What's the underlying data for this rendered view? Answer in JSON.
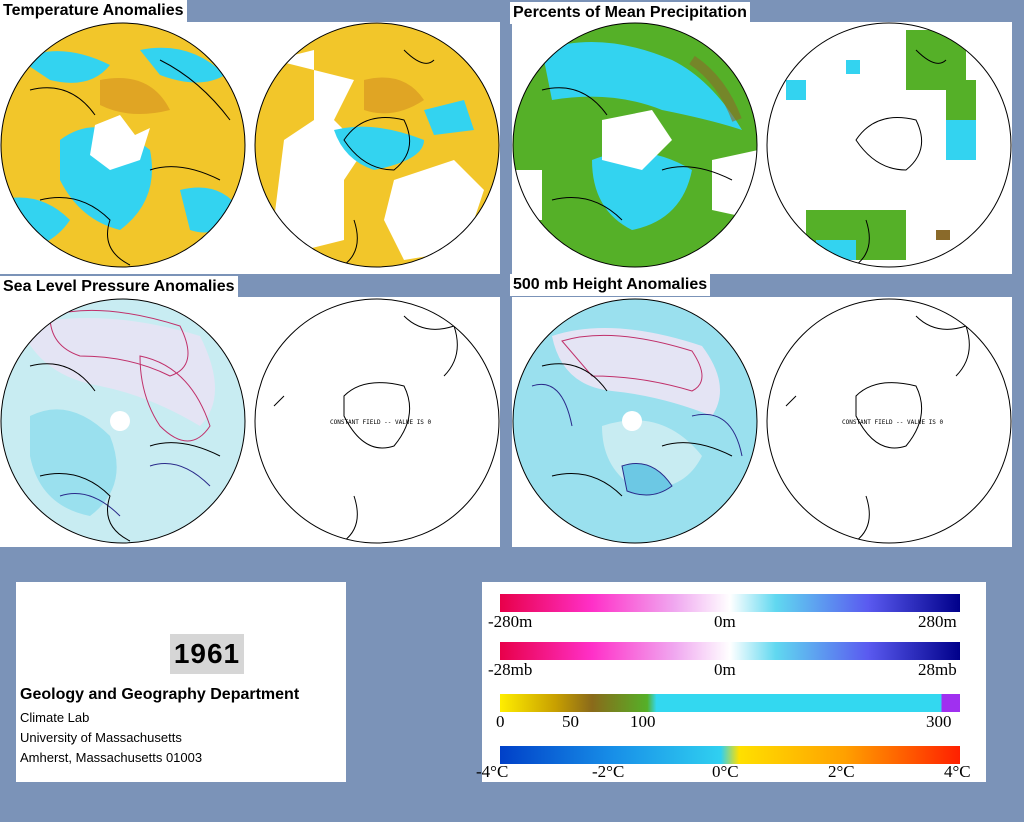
{
  "panels": {
    "temperature": {
      "title": "Temperature Anomalies"
    },
    "precipitation": {
      "title": "Percents of Mean Precipitation"
    },
    "slp": {
      "title": "Sea Level Pressure Anomalies",
      "constant_field": "CONSTANT FIELD -- VALUE IS 0"
    },
    "height": {
      "title": "500 mb Height Anomalies",
      "constant_field": "CONSTANT FIELD -- VALUE IS 0"
    }
  },
  "info": {
    "year": "1961",
    "department": "Geology and Geography Department",
    "lines": [
      "Climate Lab",
      "University of Massachusetts",
      "Amherst, Massachusetts 01003"
    ]
  },
  "legends": {
    "height": {
      "labels": [
        "-280m",
        "0m",
        "280m"
      ]
    },
    "pressure": {
      "labels": [
        "-28mb",
        "0m",
        "28mb"
      ]
    },
    "precip": {
      "labels": [
        "0",
        "50",
        "100",
        "300"
      ]
    },
    "temp": {
      "labels": [
        "-4°C",
        "-2°C",
        "0°C",
        "2°C",
        "4°C"
      ]
    }
  },
  "colors": {
    "background": "#7b93b8",
    "warm_anomaly": "#f2c62a",
    "cool_anomaly": "#33d3f0",
    "precip_green": "#55b028",
    "slp_fill": "#c8ecf2",
    "contour_pos": "#c0306a",
    "contour_neg": "#2a2a8a"
  }
}
